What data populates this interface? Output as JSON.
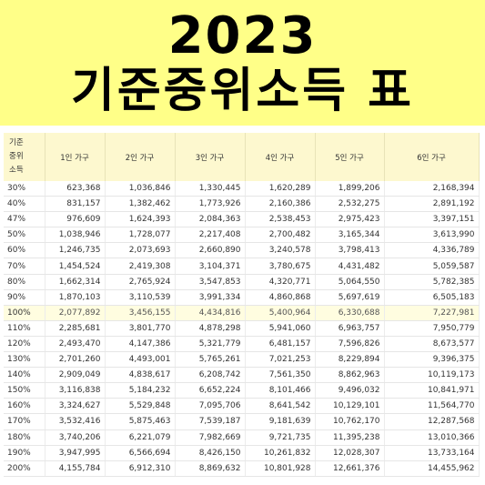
{
  "header": {
    "year": "2023",
    "title": "기준중위소득 표"
  },
  "table": {
    "row_header": [
      "기준",
      "중위",
      "소득"
    ],
    "columns": [
      "1인 가구",
      "2인 가구",
      "3인 가구",
      "4인 가구",
      "5인 가구",
      "6인 가구"
    ],
    "highlight_row": "100%",
    "rows": [
      {
        "pct": "30%",
        "values": [
          "623,368",
          "1,036,846",
          "1,330,445",
          "1,620,289",
          "1,899,206",
          "2,168,394"
        ]
      },
      {
        "pct": "40%",
        "values": [
          "831,157",
          "1,382,462",
          "1,773,926",
          "2,160,386",
          "2,532,275",
          "2,891,192"
        ]
      },
      {
        "pct": "47%",
        "values": [
          "976,609",
          "1,624,393",
          "2,084,363",
          "2,538,453",
          "2,975,423",
          "3,397,151"
        ]
      },
      {
        "pct": "50%",
        "values": [
          "1,038,946",
          "1,728,077",
          "2,217,408",
          "2,700,482",
          "3,165,344",
          "3,613,990"
        ]
      },
      {
        "pct": "60%",
        "values": [
          "1,246,735",
          "2,073,693",
          "2,660,890",
          "3,240,578",
          "3,798,413",
          "4,336,789"
        ]
      },
      {
        "pct": "70%",
        "values": [
          "1,454,524",
          "2,419,308",
          "3,104,371",
          "3,780,675",
          "4,431,482",
          "5,059,587"
        ]
      },
      {
        "pct": "80%",
        "values": [
          "1,662,314",
          "2,765,924",
          "3,547,853",
          "4,320,771",
          "5,064,550",
          "5,782,385"
        ]
      },
      {
        "pct": "90%",
        "values": [
          "1,870,103",
          "3,110,539",
          "3,991,334",
          "4,860,868",
          "5,697,619",
          "6,505,183"
        ]
      },
      {
        "pct": "100%",
        "values": [
          "2,077,892",
          "3,456,155",
          "4,434,816",
          "5,400,964",
          "6,330,688",
          "7,227,981"
        ]
      },
      {
        "pct": "110%",
        "values": [
          "2,285,681",
          "3,801,770",
          "4,878,298",
          "5,941,060",
          "6,963,757",
          "7,950,779"
        ]
      },
      {
        "pct": "120%",
        "values": [
          "2,493,470",
          "4,147,386",
          "5,321,779",
          "6,481,157",
          "7,596,826",
          "8,673,577"
        ]
      },
      {
        "pct": "130%",
        "values": [
          "2,701,260",
          "4,493,001",
          "5,765,261",
          "7,021,253",
          "8,229,894",
          "9,396,375"
        ]
      },
      {
        "pct": "140%",
        "values": [
          "2,909,049",
          "4,838,617",
          "6,208,742",
          "7,561,350",
          "8,862,963",
          "10,119,173"
        ]
      },
      {
        "pct": "150%",
        "values": [
          "3,116,838",
          "5,184,232",
          "6,652,224",
          "8,101,466",
          "9,496,032",
          "10,841,971"
        ]
      },
      {
        "pct": "160%",
        "values": [
          "3,324,627",
          "5,529,848",
          "7,095,706",
          "8,641,542",
          "10,129,101",
          "11,564,770"
        ]
      },
      {
        "pct": "170%",
        "values": [
          "3,532,416",
          "5,875,463",
          "7,539,187",
          "9,181,639",
          "10,762,170",
          "12,287,568"
        ]
      },
      {
        "pct": "180%",
        "values": [
          "3,740,206",
          "6,221,079",
          "7,982,669",
          "9,721,735",
          "11,395,238",
          "13,010,366"
        ]
      },
      {
        "pct": "190%",
        "values": [
          "3,947,995",
          "6,566,694",
          "8,426,150",
          "10,261,832",
          "12,028,307",
          "13,733,164"
        ]
      },
      {
        "pct": "200%",
        "values": [
          "4,155,784",
          "6,912,310",
          "8,869,632",
          "10,801,928",
          "12,661,376",
          "14,455,962"
        ]
      }
    ]
  },
  "colors": {
    "banner": "#ffff88",
    "header_row": "#fdf8cf",
    "highlight_row": "#fffde0"
  }
}
